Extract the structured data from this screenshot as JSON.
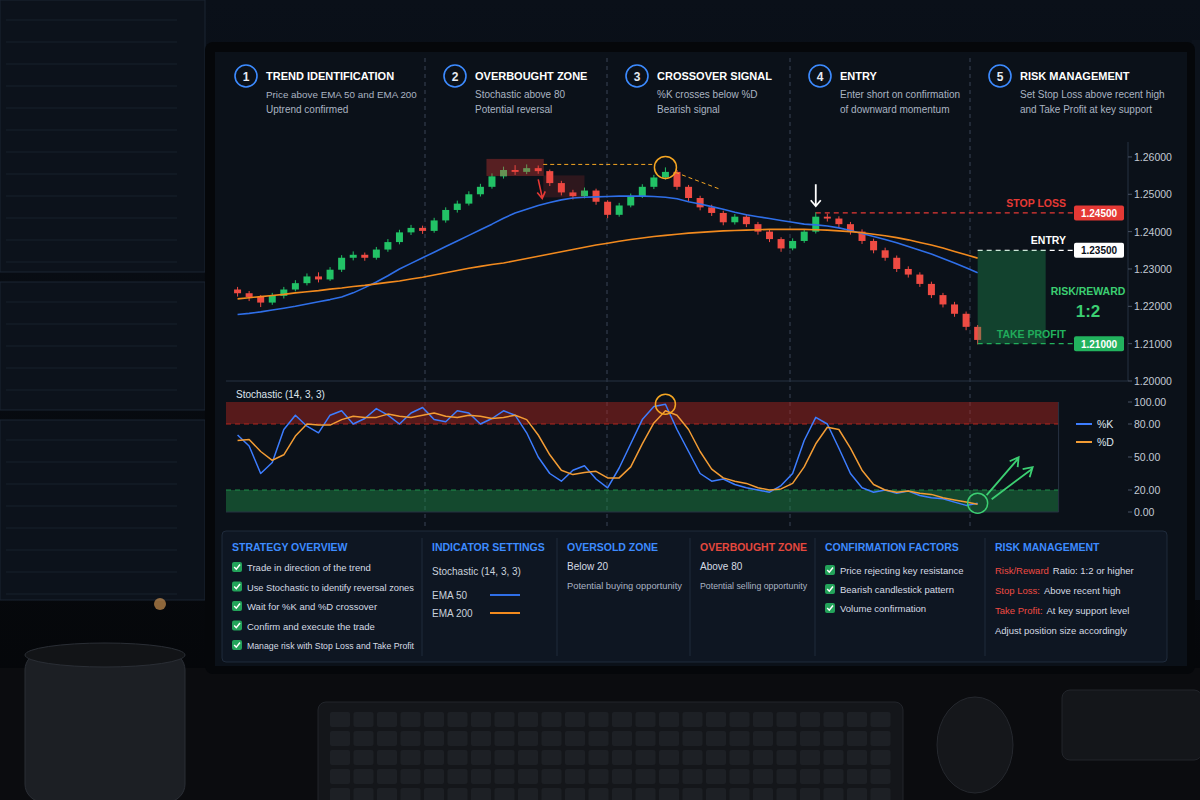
{
  "steps": [
    {
      "number": 1,
      "title": "TREND IDENTIFICATION",
      "lines": [
        "Price above EMA 50 and EMA 200",
        "Uptrend confirmed"
      ]
    },
    {
      "number": 2,
      "title": "OVERBOUGHT ZONE",
      "lines": [
        "Stochastic above 80",
        "Potential reversal"
      ]
    },
    {
      "number": 3,
      "title": "CROSSOVER SIGNAL",
      "lines": [
        "%K crosses below %D",
        "Bearish signal"
      ]
    },
    {
      "number": 4,
      "title": "ENTRY",
      "lines": [
        "Enter short on confirmation",
        "of downward momentum"
      ]
    },
    {
      "number": 5,
      "title": "RISK MANAGEMENT",
      "lines": [
        "Set Stop Loss above recent high",
        "and Take Profit at key support"
      ]
    }
  ],
  "chart_data": [
    {
      "type": "candlestick",
      "x": [
        1,
        2,
        3,
        4,
        5,
        6,
        7,
        8,
        9,
        10,
        11,
        12,
        13,
        14,
        15,
        16,
        17,
        18,
        19,
        20,
        21,
        22,
        23,
        24,
        25,
        26,
        27,
        28,
        29,
        30,
        31,
        32,
        33,
        34,
        35,
        36,
        37,
        38,
        39,
        40,
        41,
        42,
        43,
        44,
        45,
        46,
        47,
        48,
        49,
        50,
        51,
        52,
        53,
        54,
        55,
        56,
        57,
        58,
        59,
        60,
        61,
        62,
        63,
        64,
        65
      ],
      "xlim": [
        0,
        78
      ],
      "ylim": [
        1.2,
        1.264
      ],
      "yticks": [
        {
          "value": 1.2,
          "label": "1.20000"
        },
        {
          "value": 1.21,
          "label": "1.21000"
        },
        {
          "value": 1.22,
          "label": "1.22000"
        },
        {
          "value": 1.23,
          "label": "1.23000"
        },
        {
          "value": 1.24,
          "label": "1.24000"
        },
        {
          "value": 1.25,
          "label": "1.25000"
        },
        {
          "value": 1.26,
          "label": "1.26000"
        }
      ],
      "tick_labels": "y",
      "grid": false,
      "series": [
        {
          "type": "candlestick",
          "open": [
            1.2245,
            1.2235,
            1.2225,
            1.221,
            1.2228,
            1.2245,
            1.2262,
            1.228,
            1.2272,
            1.2298,
            1.233,
            1.2338,
            1.233,
            1.2352,
            1.2372,
            1.2398,
            1.241,
            1.2402,
            1.243,
            1.2458,
            1.2475,
            1.25,
            1.252,
            1.2548,
            1.2565,
            1.256,
            1.257,
            1.2562,
            1.253,
            1.2505,
            1.2495,
            1.251,
            1.248,
            1.2445,
            1.247,
            1.2495,
            1.252,
            1.2545,
            1.256,
            1.252,
            1.249,
            1.2465,
            1.245,
            1.2425,
            1.244,
            1.242,
            1.24,
            1.238,
            1.2355,
            1.2375,
            1.24,
            1.244,
            1.2435,
            1.242,
            1.24,
            1.2375,
            1.235,
            1.233,
            1.23,
            1.2285,
            1.226,
            1.223,
            1.2205,
            1.218,
            1.2145
          ],
          "high": [
            1.2252,
            1.2241,
            1.223,
            1.2236,
            1.2252,
            1.227,
            1.2288,
            1.2291,
            1.2305,
            1.2337,
            1.2347,
            1.2344,
            1.2359,
            1.238,
            1.2405,
            1.2418,
            1.2416,
            1.2437,
            1.2465,
            1.2483,
            1.2508,
            1.2528,
            1.2556,
            1.2574,
            1.2578,
            1.258,
            1.2577,
            1.2566,
            1.2536,
            1.2512,
            1.2518,
            1.2515,
            1.2484,
            1.2477,
            1.2502,
            1.2527,
            1.2552,
            1.2572,
            1.2565,
            1.2525,
            1.2496,
            1.2472,
            1.2456,
            1.2447,
            1.2446,
            1.2426,
            1.2406,
            1.2385,
            1.2382,
            1.2407,
            1.2452,
            1.2448,
            1.2441,
            1.2426,
            1.2406,
            1.2381,
            1.2357,
            1.2336,
            1.2307,
            1.2291,
            1.2266,
            1.2236,
            1.2212,
            1.2186,
            1.215
          ],
          "low": [
            1.2226,
            1.2214,
            1.2198,
            1.2204,
            1.2221,
            1.224,
            1.2256,
            1.2264,
            1.2268,
            1.2292,
            1.2323,
            1.2322,
            1.2325,
            1.2346,
            1.2366,
            1.2391,
            1.2394,
            1.2397,
            1.2424,
            1.2451,
            1.247,
            1.2494,
            1.2515,
            1.2542,
            1.2552,
            1.2554,
            1.2555,
            1.2522,
            1.2497,
            1.2486,
            1.2489,
            1.2472,
            1.2436,
            1.244,
            1.2465,
            1.249,
            1.2514,
            1.2539,
            1.2512,
            1.2482,
            1.2457,
            1.2442,
            1.2417,
            1.2419,
            1.2412,
            1.2392,
            1.2372,
            1.2346,
            1.235,
            1.237,
            1.2395,
            1.2427,
            1.2412,
            1.2392,
            1.2367,
            1.2342,
            1.2322,
            1.2292,
            1.2277,
            1.2252,
            1.2222,
            1.2197,
            1.2172,
            1.2136,
            1.2098
          ],
          "close": [
            1.2235,
            1.2225,
            1.221,
            1.2228,
            1.2245,
            1.2262,
            1.228,
            1.2272,
            1.2298,
            1.233,
            1.2338,
            1.233,
            1.2352,
            1.2372,
            1.2398,
            1.241,
            1.2402,
            1.243,
            1.2458,
            1.2475,
            1.25,
            1.252,
            1.2548,
            1.2565,
            1.256,
            1.257,
            1.2562,
            1.253,
            1.2505,
            1.2495,
            1.251,
            1.248,
            1.2445,
            1.247,
            1.2495,
            1.252,
            1.2545,
            1.256,
            1.252,
            1.249,
            1.2465,
            1.245,
            1.2425,
            1.244,
            1.242,
            1.24,
            1.238,
            1.2355,
            1.2375,
            1.24,
            1.244,
            1.2435,
            1.242,
            1.24,
            1.2375,
            1.235,
            1.233,
            1.23,
            1.2285,
            1.226,
            1.223,
            1.2205,
            1.218,
            1.2145,
            1.211
          ]
        },
        {
          "name": "EMA 50",
          "type": "line",
          "color": "#2f6fe8",
          "values": [
            1.2178,
            1.2181,
            1.2185,
            1.219,
            1.2195,
            1.22,
            1.2206,
            1.2212,
            1.2218,
            1.2225,
            1.2236,
            1.225,
            1.2265,
            1.2282,
            1.23,
            1.2315,
            1.233,
            1.2345,
            1.236,
            1.2375,
            1.239,
            1.2405,
            1.242,
            1.2436,
            1.245,
            1.246,
            1.247,
            1.2478,
            1.2485,
            1.249,
            1.2492,
            1.2493,
            1.2494,
            1.2495,
            1.2495,
            1.2495,
            1.2494,
            1.2492,
            1.2488,
            1.248,
            1.2474,
            1.2467,
            1.246,
            1.2452,
            1.2445,
            1.244,
            1.2435,
            1.243,
            1.2425,
            1.242,
            1.2418,
            1.2415,
            1.241,
            1.2403,
            1.2395,
            1.2387,
            1.2379,
            1.237,
            1.236,
            1.235,
            1.234,
            1.2328,
            1.2316,
            1.2303,
            1.229
          ]
        },
        {
          "name": "EMA 200",
          "type": "line",
          "color": "#f28a1e",
          "values": [
            1.222,
            1.2223,
            1.2226,
            1.2229,
            1.2232,
            1.2236,
            1.2239,
            1.2242,
            1.2246,
            1.2249,
            1.2253,
            1.2256,
            1.226,
            1.2264,
            1.2268,
            1.2273,
            1.2278,
            1.2284,
            1.229,
            1.2296,
            1.2302,
            1.2307,
            1.2312,
            1.2316,
            1.2322,
            1.2328,
            1.2334,
            1.234,
            1.2346,
            1.2352,
            1.2358,
            1.2364,
            1.2369,
            1.2374,
            1.2379,
            1.2383,
            1.2387,
            1.239,
            1.2393,
            1.2396,
            1.2398,
            1.24,
            1.2402,
            1.2403,
            1.2404,
            1.2405,
            1.2406,
            1.2406,
            1.2406,
            1.2406,
            1.2405,
            1.2404,
            1.2402,
            1.24,
            1.2397,
            1.2393,
            1.2389,
            1.2384,
            1.2378,
            1.2371,
            1.2364,
            1.2356,
            1.2347,
            1.2338,
            1.2329
          ]
        }
      ],
      "levels": [
        {
          "label": "STOP LOSS",
          "value": 1.245,
          "value_label": "1.24500",
          "x": 51,
          "color": "#e53935"
        },
        {
          "label": "ENTRY",
          "value": 1.235,
          "value_label": "1.23500",
          "x": 65,
          "color": "#ffffff"
        },
        {
          "label": "TAKE PROFIT",
          "value": 1.21,
          "value_label": "1.21000",
          "x": 65,
          "color": "#22b35e"
        }
      ],
      "risk_reward": {
        "label": "RISK/REWARD",
        "ratio": "1:2"
      }
    },
    {
      "type": "line",
      "title": "Stochastic (14, 3, 3)",
      "x": [
        1,
        2,
        3,
        4,
        5,
        6,
        7,
        8,
        9,
        10,
        11,
        12,
        13,
        14,
        15,
        16,
        17,
        18,
        19,
        20,
        21,
        22,
        23,
        24,
        25,
        26,
        27,
        28,
        29,
        30,
        31,
        32,
        33,
        34,
        35,
        36,
        37,
        38,
        39,
        40,
        41,
        42,
        43,
        44,
        45,
        46,
        47,
        48,
        49,
        50,
        51,
        52,
        53,
        54,
        55,
        56,
        57,
        58,
        59,
        60,
        61,
        62,
        63,
        64,
        65
      ],
      "xlim": [
        0,
        72
      ],
      "ylim": [
        0,
        100
      ],
      "yticks": [
        {
          "value": 0,
          "label": "0.00"
        },
        {
          "value": 20,
          "label": "20.00"
        },
        {
          "value": 50,
          "label": "50.00"
        },
        {
          "value": 80,
          "label": "80.00"
        },
        {
          "value": 100,
          "label": "100.00"
        }
      ],
      "tick_labels": "y",
      "grid": false,
      "legend": "right",
      "series": [
        {
          "name": "%K",
          "color": "#3d7dff",
          "values": [
            70,
            60,
            35,
            45,
            75,
            88,
            78,
            72,
            88,
            92,
            80,
            85,
            94,
            88,
            80,
            90,
            95,
            84,
            82,
            92,
            90,
            80,
            85,
            92,
            88,
            72,
            50,
            35,
            28,
            38,
            42,
            30,
            22,
            40,
            62,
            84,
            96,
            98,
            75,
            55,
            35,
            28,
            30,
            25,
            22,
            20,
            18,
            24,
            35,
            65,
            86,
            80,
            58,
            35,
            22,
            18,
            20,
            17,
            19,
            15,
            13,
            12,
            9,
            6,
            8
          ]
        },
        {
          "name": "%D",
          "color": "#f39c34",
          "values": [
            65,
            66,
            55,
            47,
            52,
            69,
            80,
            79,
            79,
            84,
            87,
            86,
            86,
            89,
            87,
            86,
            88,
            90,
            87,
            86,
            88,
            87,
            85,
            86,
            88,
            84,
            70,
            52,
            38,
            34,
            36,
            37,
            31,
            31,
            41,
            62,
            81,
            92,
            88,
            75,
            55,
            39,
            31,
            28,
            26,
            22,
            20,
            21,
            26,
            41,
            62,
            77,
            75,
            58,
            38,
            25,
            20,
            18,
            19,
            17,
            16,
            13,
            11,
            9,
            7
          ]
        }
      ],
      "bands": [
        {
          "from": 80,
          "to": 100,
          "color": "#b3261e"
        },
        {
          "from": 0,
          "to": 20,
          "color": "#1e8f4a"
        }
      ]
    }
  ],
  "panels": {
    "overview": {
      "title": "STRATEGY OVERVIEW",
      "color": "#3d8bff",
      "checks": [
        "Trade in direction of the trend",
        "Use Stochastic to identify reversal zones",
        "Wait for %K and %D crossover",
        "Confirm and execute the trade",
        "Manage risk with Stop Loss and Take Profit"
      ]
    },
    "indicators": {
      "title": "INDICATOR SETTINGS",
      "color": "#3d8bff"
    },
    "oversold": {
      "title": "OVERSOLD ZONE",
      "color": "#3d8bff",
      "lines": [
        "Below 20",
        "Potential buying opportunity"
      ]
    },
    "overbought": {
      "title": "OVERBOUGHT ZONE",
      "color": "#e5483e",
      "lines": [
        "Above 80",
        "Potential selling opportunity"
      ]
    },
    "confirmation": {
      "title": "CONFIRMATION FACTORS",
      "color": "#3d8bff",
      "checks": [
        "Price rejecting key resistance",
        "Bearish candlestick pattern",
        "Volume confirmation"
      ]
    },
    "risk": {
      "title": "RISK MANAGEMENT",
      "color": "#3d8bff",
      "rows": [
        {
          "label": "Risk/Reward",
          "text": "Ratio: 1:2 or higher"
        },
        {
          "label": "Stop Loss:",
          "text": "Above recent high"
        },
        {
          "label": "Take Profit:",
          "text": "At key support level"
        },
        {
          "text": "Adjust position size accordingly"
        }
      ]
    }
  }
}
